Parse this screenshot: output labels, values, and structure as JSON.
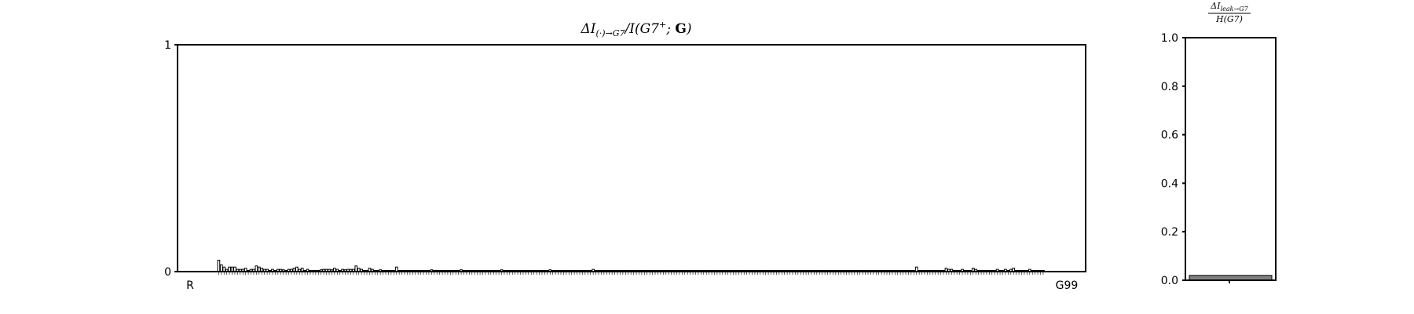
{
  "chart_data": [
    {
      "type": "bar",
      "title": "ΔI(·)→G7/I(G7⁺; G)",
      "xlabel": "",
      "ylabel": "",
      "ylim": [
        0,
        1
      ],
      "yticks": [
        "0",
        "1"
      ],
      "grid": false,
      "legend": "none",
      "first_tick_label": "R",
      "last_tick_label": "G99",
      "values": [
        0.05,
        0.03,
        0.02,
        0.01,
        0.02,
        0.02,
        0.02,
        0.01,
        0.01,
        0.01,
        0.015,
        0.005,
        0.01,
        0.01,
        0.025,
        0.02,
        0.015,
        0.01,
        0.01,
        0.005,
        0.01,
        0.005,
        0.01,
        0.01,
        0.008,
        0.005,
        0.01,
        0.01,
        0.015,
        0.02,
        0.01,
        0.015,
        0.005,
        0.01,
        0.005,
        0.005,
        0.005,
        0.005,
        0.008,
        0.01,
        0.01,
        0.01,
        0.008,
        0.015,
        0.01,
        0.005,
        0.01,
        0.008,
        0.01,
        0.01,
        0.01,
        0.025,
        0.015,
        0.01,
        0.005,
        0.005,
        0.015,
        0.01,
        0.005,
        0.005,
        0.008,
        0.005,
        0.005,
        0.005,
        0.005,
        0.005,
        0.02,
        0.005,
        0.005,
        0.005,
        0.005,
        0.005,
        0.005,
        0.005,
        0.005,
        0.005,
        0.005,
        0.005,
        0.005,
        0.008,
        0.005,
        0.005,
        0.005,
        0.005,
        0.005,
        0.005,
        0.005,
        0.005,
        0.005,
        0.005,
        0.008,
        0.005,
        0.005,
        0.005,
        0.005,
        0.005,
        0.005,
        0.005,
        0.005,
        0.005,
        0.005,
        0.005,
        0.005,
        0.005,
        0.005,
        0.008,
        0.005,
        0.005,
        0.005,
        0.005,
        0.005,
        0.005,
        0.005,
        0.005,
        0.005,
        0.005,
        0.005,
        0.005,
        0.005,
        0.005,
        0.005,
        0.005,
        0.005,
        0.008,
        0.005,
        0.005,
        0.005,
        0.005,
        0.005,
        0.005,
        0.005,
        0.005,
        0.005,
        0.005,
        0.005,
        0.005,
        0.005,
        0.005,
        0.005,
        0.01,
        0.005,
        0.005,
        0.005,
        0.005,
        0.005,
        0.005,
        0.005,
        0.005,
        0.005,
        0.005,
        0.005,
        0.005,
        0.005,
        0.005,
        0.005,
        0.005,
        0.005,
        0.005,
        0.005,
        0.005,
        0.005,
        0.005,
        0.005,
        0.005,
        0.005,
        0.005,
        0.005,
        0.005,
        0.005,
        0.005,
        0.005,
        0.005,
        0.005,
        0.005,
        0.005,
        0.005,
        0.005,
        0.005,
        0.005,
        0.005,
        0.005,
        0.005,
        0.005,
        0.005,
        0.005,
        0.005,
        0.005,
        0.005,
        0.005,
        0.005,
        0.005,
        0.005,
        0.005,
        0.005,
        0.005,
        0.005,
        0.005,
        0.005,
        0.005,
        0.005,
        0.005,
        0.005,
        0.005,
        0.005,
        0.005,
        0.005,
        0.005,
        0.005,
        0.005,
        0.005,
        0.005,
        0.005,
        0.005,
        0.005,
        0.005,
        0.005,
        0.005,
        0.005,
        0.005,
        0.005,
        0.005,
        0.005,
        0.005,
        0.005,
        0.005,
        0.005,
        0.005,
        0.005,
        0.005,
        0.005,
        0.005,
        0.005,
        0.005,
        0.005,
        0.005,
        0.005,
        0.005,
        0.005,
        0.005,
        0.005,
        0.005,
        0.005,
        0.005,
        0.005,
        0.005,
        0.005,
        0.005,
        0.005,
        0.005,
        0.005,
        0.005,
        0.005,
        0.005,
        0.005,
        0.005,
        0.005,
        0.005,
        0.005,
        0.005,
        0.02,
        0.005,
        0.005,
        0.005,
        0.005,
        0.005,
        0.005,
        0.005,
        0.005,
        0.005,
        0.005,
        0.015,
        0.01,
        0.01,
        0.005,
        0.005,
        0.005,
        0.01,
        0.005,
        0.005,
        0.005,
        0.015,
        0.01,
        0.005,
        0.005,
        0.005,
        0.005,
        0.005,
        0.005,
        0.005,
        0.01,
        0.005,
        0.005,
        0.01,
        0.005,
        0.01,
        0.015,
        0.005,
        0.005,
        0.005,
        0.005,
        0.005,
        0.01,
        0.005,
        0.005,
        0.005,
        0.005,
        0.005
      ]
    },
    {
      "type": "bar",
      "title": "ΔI leak→G7 / H(G7)",
      "title_numerator": "ΔI",
      "title_numerator_sub": "leak→G7",
      "title_denominator": "H(G7)",
      "xlabel": "",
      "ylabel": "",
      "ylim": [
        0,
        1
      ],
      "yticks": [
        "0.0",
        "0.2",
        "0.4",
        "0.6",
        "0.8",
        "1.0"
      ],
      "grid": false,
      "legend": "none",
      "categories": [
        ""
      ],
      "values": [
        0.02
      ],
      "colors": {
        "bar_fill": "#808080"
      }
    }
  ]
}
